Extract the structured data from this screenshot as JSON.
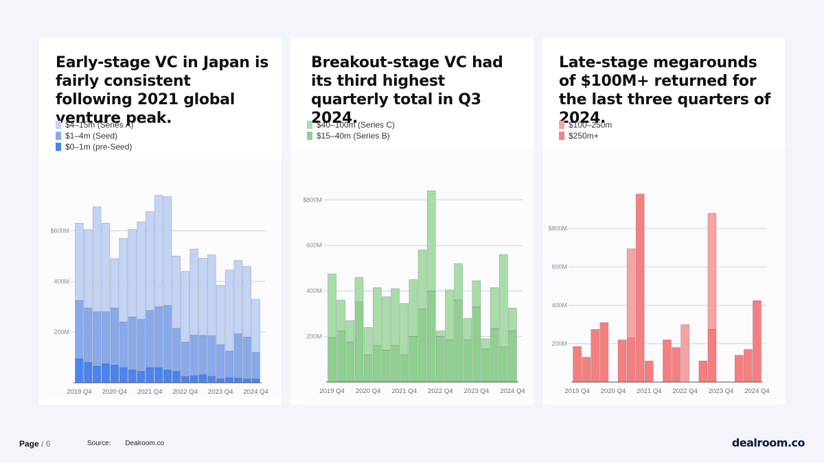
{
  "footer": {
    "page_label": "Page",
    "page_number": "/ 6",
    "source_label": "Source:",
    "source_value": "Dealroom.co",
    "logo": "dealroom.co"
  },
  "colors": {
    "blue_light": "#c3d3f3",
    "blue_mid": "#88aaea",
    "blue_dark": "#4a84ec",
    "green_light": "#a8dca8",
    "green_mid": "#8fd08f",
    "red_light": "#f5a3a3",
    "red_mid": "#f47f7f"
  },
  "chart_data": [
    {
      "type": "bar",
      "stacked": true,
      "title": "Early-stage VC in Japan is fairly consistent following 2021 global venture peak.",
      "legend": [
        "$4–15m (Series A)",
        "$1–4m (Seed)",
        "$0–1m (pre-Seed)"
      ],
      "categories": [
        "2019 Q4",
        "2020 Q1",
        "2020 Q2",
        "2020 Q3",
        "2020 Q4",
        "2021 Q1",
        "2021 Q2",
        "2021 Q3",
        "2021 Q4",
        "2022 Q1",
        "2022 Q2",
        "2022 Q3",
        "2022 Q4",
        "2023 Q1",
        "2023 Q2",
        "2023 Q3",
        "2023 Q4",
        "2024 Q1",
        "2024 Q2",
        "2024 Q3",
        "2024 Q4"
      ],
      "tick_labels": [
        "2019 Q4",
        "2020 Q4",
        "2021 Q4",
        "2022 Q4",
        "2023 Q4",
        "2024 Q4"
      ],
      "tick_indices": [
        0,
        4,
        8,
        12,
        16,
        20
      ],
      "series": [
        {
          "name": "$0–1m (pre-Seed)",
          "values": [
            95,
            80,
            65,
            75,
            70,
            60,
            50,
            45,
            60,
            60,
            50,
            45,
            25,
            28,
            32,
            25,
            15,
            20,
            18,
            15,
            15
          ]
        },
        {
          "name": "$1–4m (Seed)",
          "values": [
            230,
            215,
            215,
            205,
            225,
            180,
            210,
            205,
            225,
            240,
            255,
            170,
            135,
            160,
            155,
            160,
            135,
            105,
            175,
            165,
            105
          ]
        },
        {
          "name": "$4–15m (Series A)",
          "values": [
            305,
            310,
            415,
            350,
            195,
            330,
            345,
            385,
            390,
            440,
            430,
            285,
            280,
            340,
            305,
            320,
            235,
            320,
            290,
            280,
            210
          ]
        }
      ],
      "colors": [
        "#4a84ec",
        "#88aaea",
        "#c3d3f3"
      ],
      "y_ticks": [
        200,
        400,
        600
      ],
      "y_tick_labels": [
        "200M",
        "400M",
        "$600M"
      ],
      "ylim": [
        0,
        750
      ]
    },
    {
      "type": "bar",
      "stacked": true,
      "title": "Breakout-stage VC had its third highest quarterly total in Q3 2024.",
      "legend": [
        "$40–100m (Series C)",
        "$15–40m (Series B)"
      ],
      "categories": [
        "2019 Q4",
        "2020 Q1",
        "2020 Q2",
        "2020 Q3",
        "2020 Q4",
        "2021 Q1",
        "2021 Q2",
        "2021 Q3",
        "2021 Q4",
        "2022 Q1",
        "2022 Q2",
        "2022 Q3",
        "2022 Q4",
        "2023 Q1",
        "2023 Q2",
        "2023 Q3",
        "2023 Q4",
        "2024 Q1",
        "2024 Q2",
        "2024 Q3",
        "2024 Q4"
      ],
      "tick_labels": [
        "2019 Q4",
        "2020 Q4",
        "2021 Q4",
        "2022 Q4",
        "2023 Q4",
        "2024 Q4"
      ],
      "tick_indices": [
        0,
        4,
        8,
        12,
        16,
        20
      ],
      "series": [
        {
          "name": "$15–40m (Series B)",
          "values": [
            195,
            225,
            175,
            350,
            120,
            160,
            140,
            160,
            120,
            200,
            320,
            400,
            200,
            185,
            360,
            185,
            330,
            145,
            235,
            155,
            225
          ]
        },
        {
          "name": "$40–100m (Series C)",
          "values": [
            280,
            135,
            95,
            110,
            120,
            255,
            235,
            250,
            225,
            250,
            260,
            440,
            25,
            220,
            160,
            95,
            115,
            45,
            180,
            405,
            100
          ]
        }
      ],
      "colors": [
        "#8fd08f",
        "#a8dca8"
      ],
      "y_ticks": [
        200,
        400,
        600,
        800
      ],
      "y_tick_labels": [
        "200M",
        "400M",
        "600M",
        "$800M"
      ],
      "ylim": [
        0,
        840
      ]
    },
    {
      "type": "bar",
      "stacked": true,
      "title": "Late-stage megarounds of $100M+ returned for the last three quarters of 2024.",
      "legend": [
        "$100–250m",
        "$250m+"
      ],
      "categories": [
        "2019 Q4",
        "2020 Q1",
        "2020 Q2",
        "2020 Q3",
        "2020 Q4",
        "2021 Q1",
        "2021 Q2",
        "2021 Q3",
        "2021 Q4",
        "2022 Q1",
        "2022 Q2",
        "2022 Q3",
        "2022 Q4",
        "2023 Q1",
        "2023 Q2",
        "2023 Q3",
        "2023 Q4",
        "2024 Q1",
        "2024 Q2",
        "2024 Q3",
        "2024 Q4"
      ],
      "tick_labels": [
        "2019 Q4",
        "2020 Q4",
        "2021 Q4",
        "2022 Q4",
        "2023 Q4",
        "2024 Q4"
      ],
      "tick_indices": [
        0,
        4,
        8,
        12,
        16,
        20
      ],
      "series": [
        {
          "name": "$250m+",
          "values": [
            185,
            130,
            275,
            310,
            0,
            220,
            230,
            980,
            110,
            0,
            220,
            180,
            0,
            0,
            110,
            275,
            0,
            0,
            140,
            170,
            425
          ]
        },
        {
          "name": "$100–250m",
          "values": [
            0,
            0,
            0,
            0,
            0,
            0,
            465,
            0,
            0,
            0,
            0,
            0,
            300,
            0,
            0,
            605,
            0,
            0,
            0,
            0,
            0
          ]
        }
      ],
      "colors": [
        "#f47f7f",
        "#f5a3a3"
      ],
      "y_ticks": [
        200,
        400,
        600,
        800
      ],
      "y_tick_labels": [
        "200M",
        "400M",
        "600M",
        "$800M"
      ],
      "ylim": [
        0,
        990
      ]
    }
  ]
}
